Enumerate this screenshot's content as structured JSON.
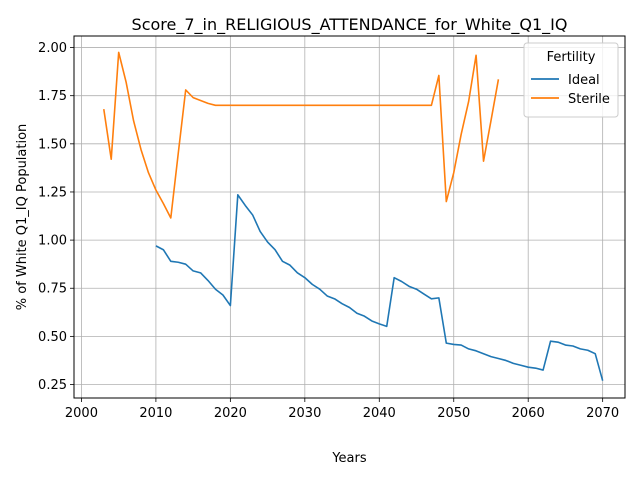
{
  "chart_data": {
    "type": "line",
    "title": "Score_7_in_RELIGIOUS_ATTENDANCE_for_White_Q1_IQ",
    "xlabel": "Years",
    "ylabel": "% of White Q1_IQ Population",
    "xlim": [
      1999,
      2073
    ],
    "ylim": [
      0.18,
      2.06
    ],
    "xticks": [
      2000,
      2010,
      2020,
      2030,
      2040,
      2050,
      2060,
      2070
    ],
    "yticks": [
      0.25,
      0.5,
      0.75,
      1.0,
      1.25,
      1.5,
      1.75,
      2.0
    ],
    "ytick_labels": [
      "0.25",
      "0.50",
      "0.75",
      "1.00",
      "1.25",
      "1.50",
      "1.75",
      "2.00"
    ],
    "grid": true,
    "legend": {
      "title": "Fertility",
      "position": "top-right"
    },
    "series": [
      {
        "name": "Ideal",
        "color": "#1f77b4",
        "x": [
          2010,
          2011,
          2012,
          2013,
          2014,
          2015,
          2016,
          2017,
          2018,
          2019,
          2020,
          2021,
          2022,
          2023,
          2024,
          2025,
          2026,
          2027,
          2028,
          2029,
          2030,
          2031,
          2032,
          2033,
          2034,
          2035,
          2036,
          2037,
          2038,
          2039,
          2040,
          2041,
          2042,
          2043,
          2044,
          2045,
          2046,
          2047,
          2048,
          2049,
          2050,
          2051,
          2052,
          2053,
          2054,
          2055,
          2056,
          2057,
          2058,
          2059,
          2060,
          2061,
          2062,
          2063,
          2064,
          2065,
          2066,
          2067,
          2068,
          2069,
          2070
        ],
        "y": [
          0.97,
          0.95,
          0.89,
          0.885,
          0.875,
          0.84,
          0.83,
          0.79,
          0.745,
          0.715,
          0.66,
          1.235,
          1.18,
          1.13,
          1.045,
          0.99,
          0.95,
          0.89,
          0.87,
          0.83,
          0.805,
          0.77,
          0.745,
          0.71,
          0.695,
          0.67,
          0.65,
          0.62,
          0.605,
          0.58,
          0.565,
          0.552,
          0.805,
          0.785,
          0.76,
          0.745,
          0.72,
          0.695,
          0.7,
          0.465,
          0.458,
          0.455,
          0.435,
          0.425,
          0.41,
          0.395,
          0.385,
          0.375,
          0.36,
          0.35,
          0.34,
          0.335,
          0.325,
          0.475,
          0.47,
          0.455,
          0.45,
          0.435,
          0.428,
          0.41,
          0.27
        ]
      },
      {
        "name": "Sterile",
        "color": "#ff7f0e",
        "segments": [
          {
            "x": [
              2003,
              2004,
              2005,
              2006,
              2007,
              2008,
              2009,
              2010,
              2011,
              2012,
              2013,
              2014,
              2015,
              2016,
              2017,
              2018,
              2019,
              2020,
              2021,
              2022,
              2023,
              2024,
              2025,
              2026,
              2027,
              2028,
              2029,
              2030,
              2031,
              2032,
              2033,
              2034,
              2035,
              2036,
              2037,
              2038,
              2039,
              2040,
              2041,
              2042,
              2043,
              2044,
              2045,
              2046,
              2047,
              2048,
              2049,
              2050,
              2051,
              2052,
              2053,
              2054,
              2055,
              2056
            ],
            "y": [
              1.68,
              1.42,
              1.975,
              1.82,
              1.62,
              1.47,
              1.35,
              1.26,
              1.19,
              1.115,
              1.45,
              1.78,
              1.74,
              1.725,
              1.71,
              1.7,
              1.7,
              1.7,
              1.7,
              1.7,
              1.7,
              1.7,
              1.7,
              1.7,
              1.7,
              1.7,
              1.7,
              1.7,
              1.7,
              1.7,
              1.7,
              1.7,
              1.7,
              1.7,
              1.7,
              1.7,
              1.7,
              1.7,
              1.7,
              1.7,
              1.7,
              1.7,
              1.7,
              1.7,
              1.7,
              1.855,
              1.2,
              1.35,
              1.55,
              1.72,
              1.96,
              1.41,
              1.62,
              1.835
            ]
          }
        ]
      }
    ]
  }
}
